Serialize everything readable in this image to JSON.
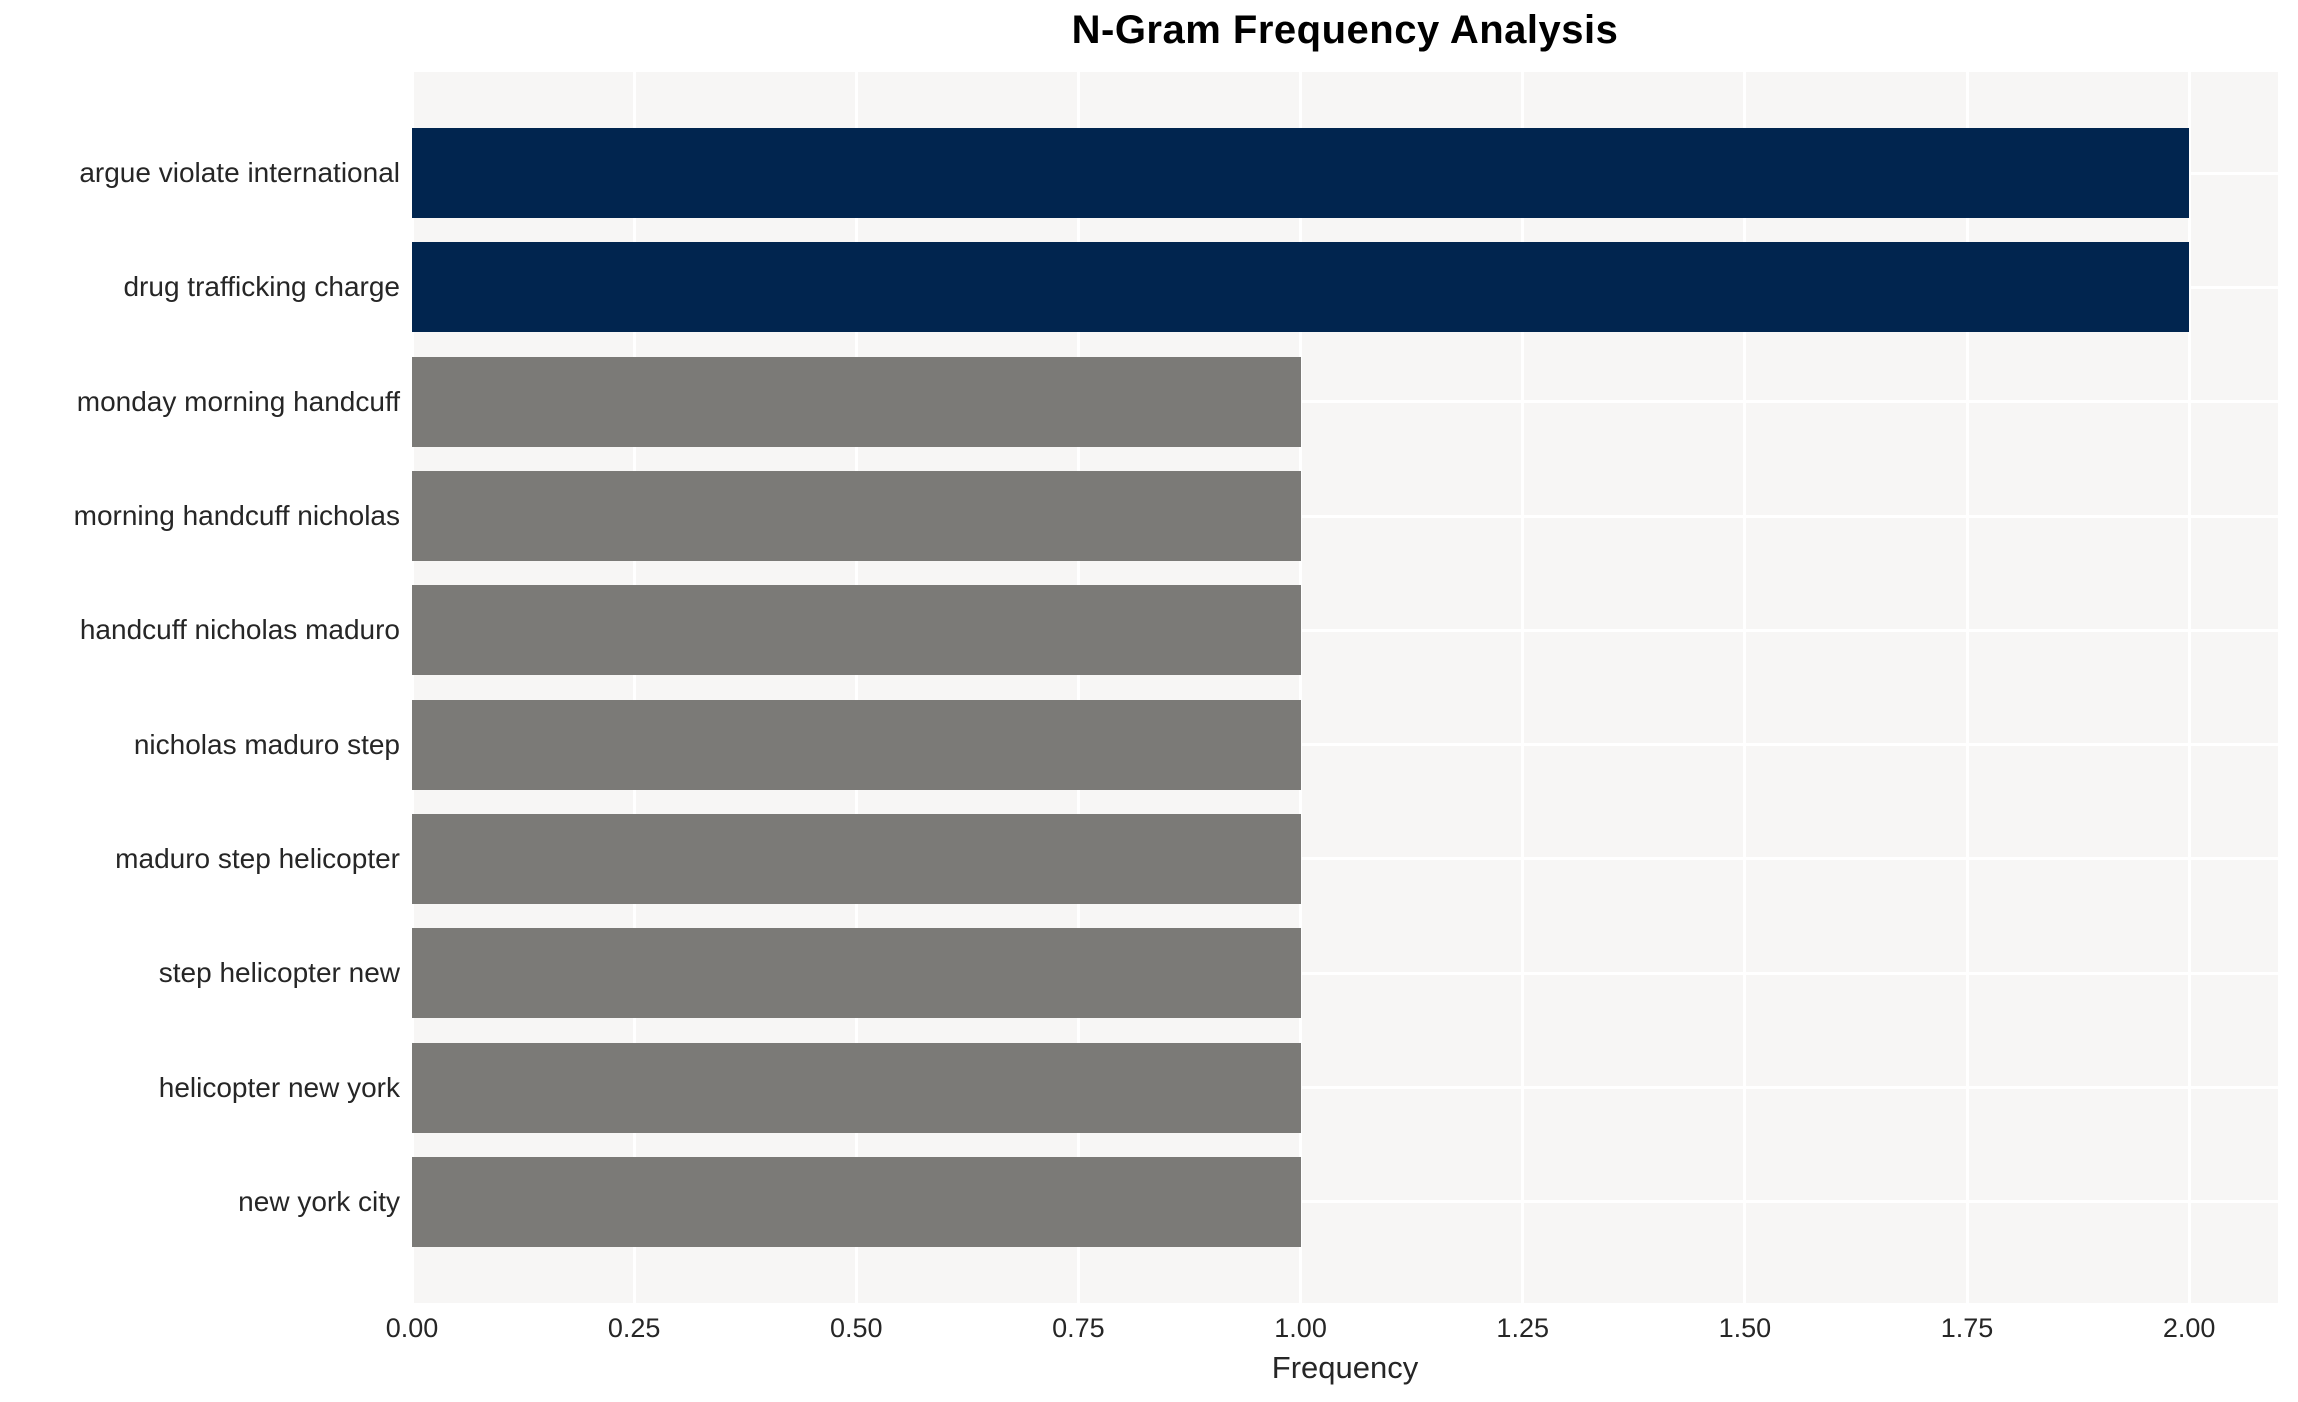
{
  "chart_data": {
    "type": "bar",
    "orientation": "horizontal",
    "title": "N-Gram Frequency Analysis",
    "xlabel": "Frequency",
    "ylabel": "",
    "categories": [
      "argue violate international",
      "drug trafficking charge",
      "monday morning handcuff",
      "morning handcuff nicholas",
      "handcuff nicholas maduro",
      "nicholas maduro step",
      "maduro step helicopter",
      "step helicopter new",
      "helicopter new york",
      "new york city"
    ],
    "values": [
      2,
      2,
      1,
      1,
      1,
      1,
      1,
      1,
      1,
      1
    ],
    "bar_colors": [
      "#01254f",
      "#01254f",
      "#7b7a77",
      "#7b7a77",
      "#7b7a77",
      "#7b7a77",
      "#7b7a77",
      "#7b7a77",
      "#7b7a77",
      "#7b7a77"
    ],
    "x_ticks": [
      "0.00",
      "0.25",
      "0.50",
      "0.75",
      "1.00",
      "1.25",
      "1.50",
      "1.75",
      "2.00"
    ],
    "xlim": [
      0,
      2.1
    ],
    "grid": "on",
    "legend": "none",
    "colors": {
      "highlight_bar": "#01254f",
      "normal_bar": "#7b7a77",
      "plot_background": "#f7f6f5",
      "gridline": "#ffffff",
      "text": "#262626",
      "title_text": "#000000"
    }
  }
}
